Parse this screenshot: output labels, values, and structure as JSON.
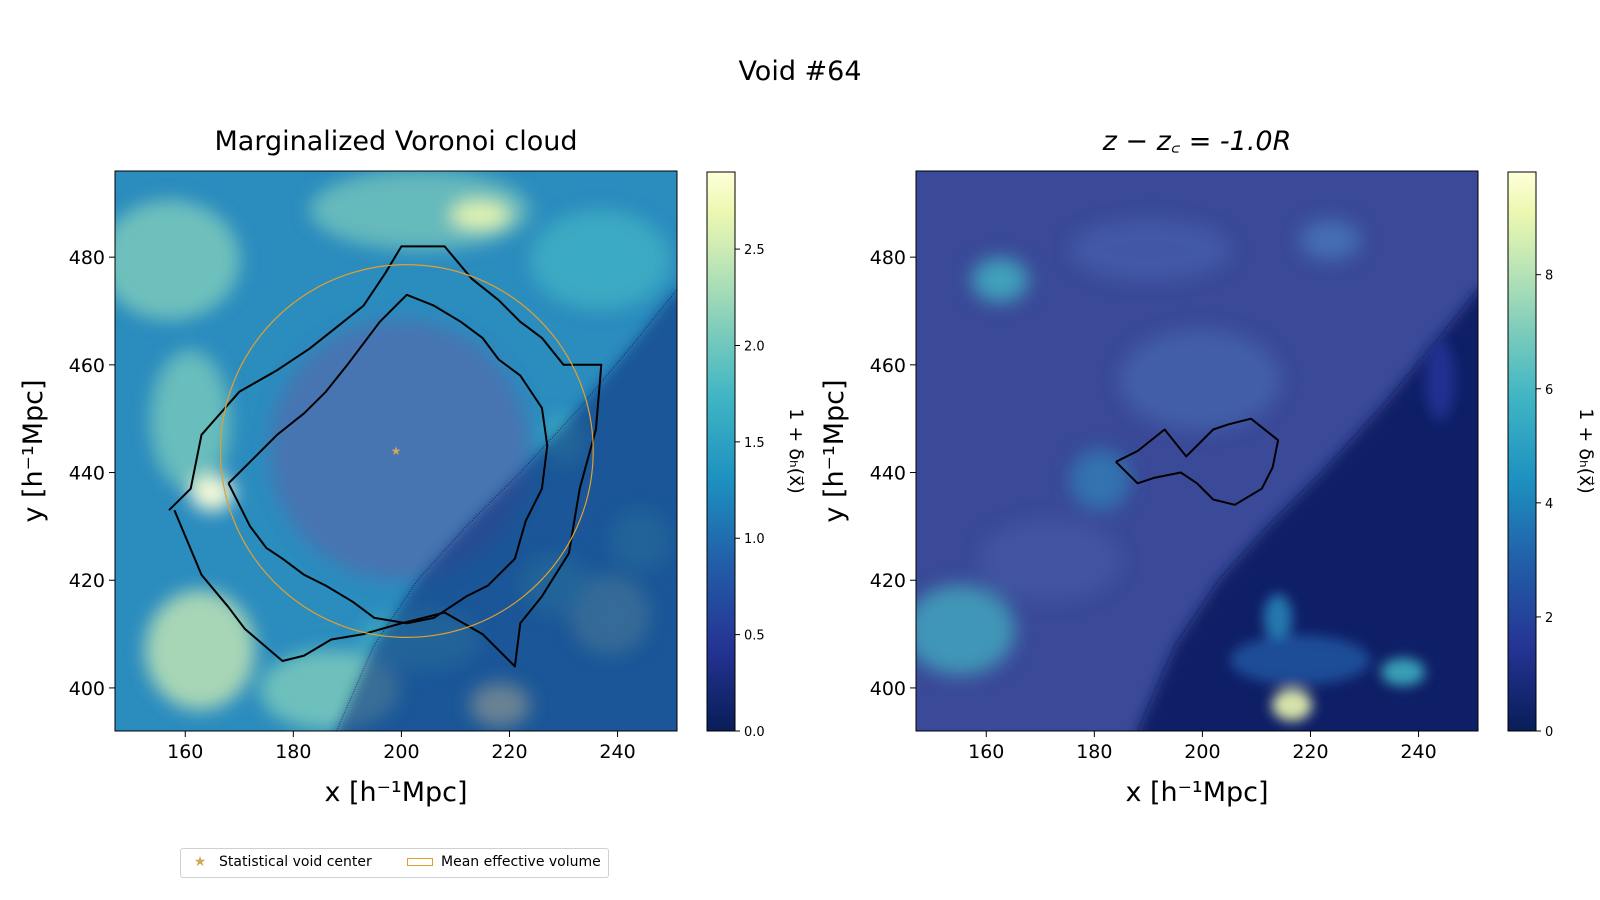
{
  "figure": {
    "title": "Void #64",
    "legend": [
      {
        "label": "Statistical void center",
        "marker": "star",
        "color": "#d4a55a"
      },
      {
        "label": "Mean effective volume",
        "marker": "rect-outline",
        "color": "#e0a030"
      }
    ]
  },
  "colors": {
    "void_center": "#d4a55a",
    "mean_volume_circle": "#e0a030",
    "contour": "#000000",
    "colormap_low": "#081d58",
    "colormap_mid": "#1d91c0",
    "colormap_high": "#ffffd9"
  },
  "chart_data": [
    {
      "type": "heatmap",
      "title": "Marginalized Voronoi cloud",
      "xlabel": "x [h⁻¹Mpc]",
      "ylabel": "y [h⁻¹Mpc]",
      "xlim": [
        147,
        251
      ],
      "ylim": [
        392,
        496
      ],
      "xticks": [
        160,
        180,
        200,
        220,
        240
      ],
      "yticks": [
        400,
        420,
        440,
        460,
        480
      ],
      "colorbar": {
        "label": "1 + δₕ(x⃗)",
        "range": [
          0.0,
          2.9
        ],
        "ticks": [
          "0.0",
          "0.5",
          "1.0",
          "1.5",
          "2.0",
          "2.5"
        ],
        "tick_values": [
          0.0,
          0.5,
          1.0,
          1.5,
          2.0,
          2.5
        ]
      },
      "void_center": {
        "x": 199,
        "y": 444
      },
      "mean_effective_volume": {
        "center_x": 201,
        "center_y": 444,
        "radius": 34.5
      },
      "contours": [
        [
          [
            157,
            433
          ],
          [
            161,
            437
          ],
          [
            163,
            447
          ],
          [
            170,
            455
          ],
          [
            177,
            459
          ],
          [
            183,
            463
          ],
          [
            188,
            467
          ],
          [
            193,
            471
          ],
          [
            197,
            477
          ],
          [
            200,
            482
          ],
          [
            208,
            482
          ],
          [
            213,
            476
          ],
          [
            218,
            472
          ],
          [
            222,
            468
          ],
          [
            226,
            465
          ],
          [
            230,
            460
          ],
          [
            232,
            460
          ],
          [
            237,
            460
          ],
          [
            236,
            448
          ],
          [
            233,
            437
          ],
          [
            231,
            425
          ],
          [
            226,
            417
          ],
          [
            222,
            412
          ],
          [
            221,
            404
          ],
          [
            215,
            410
          ],
          [
            208,
            414
          ],
          [
            200,
            412
          ],
          [
            193,
            410
          ],
          [
            187,
            409
          ],
          [
            182,
            406
          ],
          [
            178,
            405
          ],
          [
            171,
            411
          ],
          [
            168,
            415
          ],
          [
            163,
            421
          ],
          [
            158,
            433
          ]
        ],
        [
          [
            168,
            438
          ],
          [
            173,
            443
          ],
          [
            177,
            447
          ],
          [
            182,
            451
          ],
          [
            186,
            455
          ],
          [
            190,
            460
          ],
          [
            196,
            468
          ],
          [
            201,
            473
          ],
          [
            206,
            471
          ],
          [
            211,
            468
          ],
          [
            215,
            465
          ],
          [
            218,
            461
          ],
          [
            222,
            458
          ],
          [
            226,
            452
          ],
          [
            227,
            445
          ],
          [
            226,
            437
          ],
          [
            223,
            431
          ],
          [
            221,
            424
          ],
          [
            216,
            419
          ],
          [
            212,
            417
          ],
          [
            206,
            413
          ],
          [
            201,
            412
          ],
          [
            195,
            413
          ],
          [
            191,
            416
          ],
          [
            186,
            419
          ],
          [
            182,
            421
          ],
          [
            178,
            424
          ],
          [
            175,
            426
          ],
          [
            172,
            430
          ],
          [
            170,
            434
          ],
          [
            168,
            438
          ]
        ]
      ],
      "shadow_boundary": [
        [
          188,
          392
        ],
        [
          195,
          408
        ],
        [
          203,
          420
        ],
        [
          212,
          430
        ],
        [
          222,
          440
        ],
        [
          233,
          452
        ],
        [
          243,
          464
        ],
        [
          251,
          474
        ]
      ]
    },
    {
      "type": "heatmap",
      "title": "z − z꜀ = -1.0R",
      "xlabel": "x [h⁻¹Mpc]",
      "ylabel": "y [h⁻¹Mpc]",
      "xlim": [
        147,
        251
      ],
      "ylim": [
        392,
        496
      ],
      "xticks": [
        160,
        180,
        200,
        220,
        240
      ],
      "yticks": [
        400,
        420,
        440,
        460,
        480
      ],
      "colorbar": {
        "label": "1 + δₕ(x⃗)",
        "range": [
          0,
          9.8
        ],
        "ticks": [
          "0",
          "2",
          "4",
          "6",
          "8"
        ],
        "tick_values": [
          0,
          2,
          4,
          6,
          8
        ]
      },
      "contours": [
        [
          [
            184,
            442
          ],
          [
            188,
            444
          ],
          [
            193,
            448
          ],
          [
            197,
            443
          ],
          [
            202,
            448
          ],
          [
            205,
            449
          ],
          [
            209,
            450
          ],
          [
            214,
            446
          ],
          [
            213,
            441
          ],
          [
            211,
            437
          ],
          [
            206,
            434
          ],
          [
            202,
            435
          ],
          [
            199,
            438
          ],
          [
            196,
            440
          ],
          [
            191,
            439
          ],
          [
            188,
            438
          ],
          [
            184,
            442
          ]
        ]
      ],
      "shadow_boundary": [
        [
          188,
          392
        ],
        [
          195,
          408
        ],
        [
          203,
          420
        ],
        [
          212,
          430
        ],
        [
          222,
          440
        ],
        [
          233,
          452
        ],
        [
          243,
          464
        ],
        [
          251,
          474
        ]
      ]
    }
  ]
}
